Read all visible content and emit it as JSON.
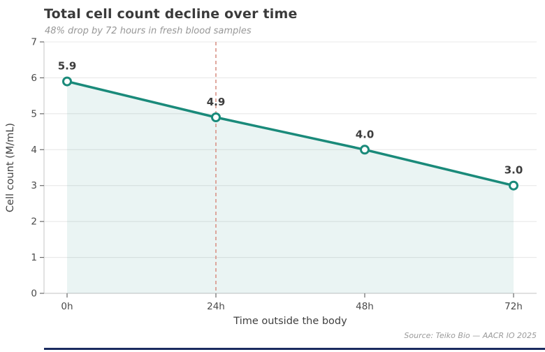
{
  "header": {
    "title": "Total cell count decline over time",
    "subtitle": "48% drop by 72 hours in fresh blood samples"
  },
  "chart_data": {
    "type": "line",
    "categories": [
      "0h",
      "24h",
      "48h",
      "72h"
    ],
    "x_hours": [
      0,
      24,
      48,
      72
    ],
    "values": [
      5.9,
      4.9,
      4.0,
      3.0
    ],
    "point_labels": [
      "5.9",
      "4.9",
      "4.0",
      "3.0"
    ],
    "xlabel": "Time outside the body",
    "ylabel": "Cell count (M/mL)",
    "ylim": [
      0,
      7
    ],
    "yticks": [
      0,
      1,
      2,
      3,
      4,
      5,
      6,
      7
    ],
    "grid": "horizontal",
    "legend": "none",
    "vline_at_hour": 24,
    "colors": {
      "line": "#1a8a7a",
      "marker_fill": "#ffffff",
      "area_fill": "#1a8a7a",
      "area_opacity": 0.09,
      "vline": "#d89287",
      "grid": "#e8e8e8",
      "spine": "#cfcfcf",
      "tick_mark": "#6a6a6a",
      "tick_label": "#4a4a4a",
      "data_label": "#3d3d3d"
    }
  },
  "footer": {
    "source": "Source: Teiko Bio — AACR IO 2025",
    "bar_color": "#1a2b5f"
  }
}
